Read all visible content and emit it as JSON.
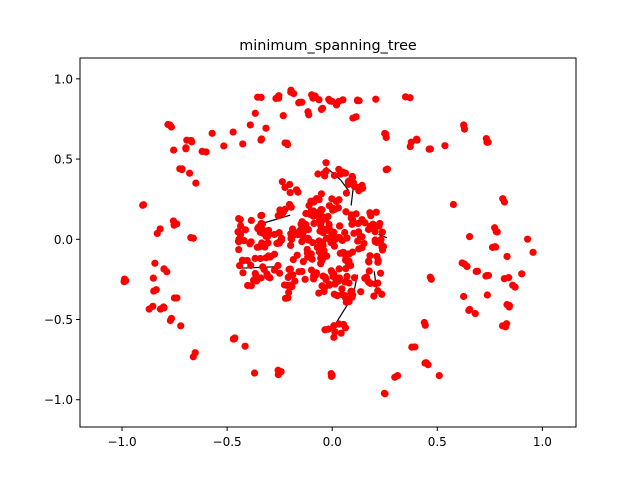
{
  "chart_data": {
    "type": "scatter",
    "title": "minimum_spanning_tree",
    "xlabel": "",
    "ylabel": "",
    "xlim": [
      -1.2,
      1.16
    ],
    "ylim": [
      -1.17,
      1.13
    ],
    "xticks": [
      -1.0,
      -0.5,
      0.0,
      0.5,
      1.0
    ],
    "xtick_labels": [
      "−1.0",
      "−0.5",
      "0.0",
      "0.5",
      "1.0"
    ],
    "yticks": [
      -1.0,
      -0.5,
      0.0,
      0.5,
      1.0
    ],
    "ytick_labels": [
      "−1.0",
      "−0.5",
      "0.0",
      "0.5",
      "1.0"
    ],
    "grid": false,
    "node_color": "#ff0000",
    "edge_color": "#000000",
    "outer_nodes": [
      [
        -0.35,
        0.89
      ],
      [
        -0.26,
        0.89
      ],
      [
        -0.19,
        0.92
      ],
      [
        -0.15,
        0.85
      ],
      [
        -0.09,
        0.89
      ],
      [
        -0.06,
        0.87
      ],
      [
        -0.01,
        0.87
      ],
      [
        0.05,
        0.88
      ],
      [
        0.13,
        0.87
      ],
      [
        0.21,
        0.87
      ],
      [
        0.36,
        0.88
      ],
      [
        -0.37,
        0.77
      ],
      [
        -0.31,
        0.69
      ],
      [
        -0.24,
        0.77
      ],
      [
        -0.12,
        0.78
      ],
      [
        -0.05,
        0.81
      ],
      [
        0.02,
        0.85
      ],
      [
        0.11,
        0.76
      ],
      [
        0.25,
        0.65
      ],
      [
        0.4,
        0.63
      ],
      [
        -0.4,
        0.7
      ],
      [
        -0.57,
        0.67
      ],
      [
        -0.48,
        0.66
      ],
      [
        -0.77,
        0.71
      ],
      [
        -0.68,
        0.61
      ],
      [
        -0.7,
        0.57
      ],
      [
        -0.61,
        0.55
      ],
      [
        -0.52,
        0.58
      ],
      [
        -0.43,
        0.59
      ],
      [
        -0.33,
        0.62
      ],
      [
        -0.22,
        0.6
      ],
      [
        0.38,
        0.59
      ],
      [
        0.47,
        0.55
      ],
      [
        0.53,
        0.59
      ],
      [
        0.63,
        0.7
      ],
      [
        0.74,
        0.62
      ],
      [
        -0.76,
        0.55
      ],
      [
        -0.72,
        0.44
      ],
      [
        -0.67,
        0.42
      ],
      [
        -0.64,
        0.35
      ],
      [
        0.26,
        0.44
      ],
      [
        -0.9,
        0.21
      ],
      [
        -0.75,
        0.1
      ],
      [
        -0.83,
        0.05
      ],
      [
        -0.67,
        0.0
      ],
      [
        -0.45,
        0.0
      ],
      [
        0.57,
        0.22
      ],
      [
        0.81,
        0.24
      ],
      [
        0.65,
        0.01
      ],
      [
        0.78,
        0.06
      ],
      [
        0.92,
        0.01
      ],
      [
        0.96,
        -0.07
      ],
      [
        0.77,
        -0.04
      ],
      [
        0.84,
        -0.12
      ],
      [
        -0.84,
        -0.15
      ],
      [
        -0.79,
        -0.19
      ],
      [
        -0.84,
        -0.25
      ],
      [
        -0.99,
        -0.26
      ],
      [
        -0.84,
        -0.32
      ],
      [
        -0.86,
        -0.42
      ],
      [
        -0.81,
        -0.43
      ],
      [
        -0.75,
        -0.36
      ],
      [
        -0.77,
        -0.5
      ],
      [
        -0.71,
        -0.55
      ],
      [
        0.63,
        -0.16
      ],
      [
        0.68,
        -0.19
      ],
      [
        0.74,
        -0.22
      ],
      [
        0.83,
        -0.24
      ],
      [
        0.91,
        -0.2
      ],
      [
        0.86,
        -0.3
      ],
      [
        0.46,
        -0.24
      ],
      [
        0.62,
        -0.37
      ],
      [
        0.73,
        -0.35
      ],
      [
        0.84,
        -0.42
      ],
      [
        0.66,
        -0.45
      ],
      [
        0.69,
        -0.47
      ],
      [
        0.82,
        -0.54
      ],
      [
        0.45,
        -0.53
      ],
      [
        -0.47,
        -0.63
      ],
      [
        -0.41,
        -0.67
      ],
      [
        -0.65,
        -0.72
      ],
      [
        -0.37,
        -0.82
      ],
      [
        -0.25,
        -0.83
      ],
      [
        0.0,
        -0.85
      ],
      [
        0.39,
        -0.67
      ],
      [
        0.45,
        -0.77
      ],
      [
        0.51,
        -0.84
      ],
      [
        0.3,
        -0.85
      ],
      [
        0.25,
        -0.95
      ]
    ],
    "inner_nodes": [
      [
        -0.42,
        0.08
      ],
      [
        -0.33,
        0.12
      ],
      [
        -0.35,
        0.02
      ],
      [
        -0.41,
        -0.02
      ],
      [
        -0.43,
        -0.18
      ],
      [
        -0.36,
        -0.18
      ],
      [
        -0.37,
        -0.26
      ],
      [
        -0.3,
        -0.08
      ],
      [
        -0.28,
        -0.2
      ],
      [
        -0.33,
        -0.08
      ],
      [
        -0.24,
        0.16
      ],
      [
        -0.22,
        0.2
      ],
      [
        -0.2,
        0.34
      ],
      [
        -0.16,
        0.08
      ],
      [
        -0.12,
        0.2
      ],
      [
        -0.1,
        0.14
      ],
      [
        -0.07,
        0.24
      ],
      [
        -0.04,
        0.17
      ],
      [
        0.0,
        0.22
      ],
      [
        0.03,
        0.21
      ],
      [
        0.08,
        0.13
      ],
      [
        0.13,
        0.14
      ],
      [
        0.18,
        0.12
      ],
      [
        0.2,
        0.06
      ],
      [
        0.24,
        0.02
      ],
      [
        0.23,
        -0.04
      ],
      [
        0.21,
        -0.1
      ],
      [
        0.19,
        -0.18
      ],
      [
        0.2,
        -0.25
      ],
      [
        0.21,
        -0.32
      ],
      [
        0.15,
        -0.22
      ],
      [
        0.11,
        -0.14
      ],
      [
        0.07,
        -0.08
      ],
      [
        0.03,
        -0.04
      ],
      [
        0.0,
        0.0
      ],
      [
        -0.05,
        0.03
      ],
      [
        -0.09,
        -0.04
      ],
      [
        -0.13,
        -0.09
      ],
      [
        -0.17,
        -0.16
      ],
      [
        -0.18,
        -0.27
      ],
      [
        -0.19,
        -0.33
      ],
      [
        -0.11,
        -0.2
      ],
      [
        -0.06,
        -0.14
      ],
      [
        -0.02,
        -0.24
      ],
      [
        0.03,
        -0.17
      ],
      [
        0.07,
        -0.27
      ],
      [
        0.08,
        -0.33
      ],
      [
        0.02,
        -0.31
      ],
      [
        -0.05,
        -0.3
      ],
      [
        0.1,
        0.33
      ],
      [
        0.12,
        0.33
      ],
      [
        -0.03,
        0.45
      ],
      [
        0.0,
        0.43
      ],
      [
        0.07,
        0.38
      ],
      [
        -0.27,
        0.02
      ],
      [
        -0.22,
        -0.02
      ],
      [
        -0.18,
        0.03
      ],
      [
        -0.13,
        0.04
      ],
      [
        -0.05,
        0.1
      ],
      [
        0.04,
        0.05
      ],
      [
        0.09,
        0.02
      ],
      [
        0.14,
        -0.02
      ],
      [
        0.17,
        0.02
      ],
      [
        -0.01,
        -0.08
      ],
      [
        -0.08,
        -0.1
      ],
      [
        0.0,
        -0.56
      ],
      [
        0.04,
        -0.57
      ],
      [
        0.1,
        -0.35
      ]
    ],
    "edges": [
      [
        [
          -0.44,
          -0.18
        ],
        [
          -0.25,
          -0.17
        ]
      ],
      [
        [
          -0.35,
          0.03
        ],
        [
          -0.33,
          0.1
        ]
      ],
      [
        [
          -0.33,
          0.1
        ],
        [
          -0.2,
          0.15
        ]
      ],
      [
        [
          0.09,
          0.21
        ],
        [
          0.1,
          0.32
        ]
      ],
      [
        [
          0.1,
          0.32
        ],
        [
          0.12,
          0.34
        ]
      ],
      [
        [
          -0.03,
          0.45
        ],
        [
          0.04,
          0.37
        ]
      ],
      [
        [
          0.04,
          0.37
        ],
        [
          0.08,
          0.3
        ]
      ],
      [
        [
          0.0,
          -0.56
        ],
        [
          0.1,
          -0.35
        ]
      ],
      [
        [
          0.1,
          -0.35
        ],
        [
          0.12,
          -0.22
        ]
      ],
      [
        [
          0.22,
          0.03
        ],
        [
          0.26,
          0.01
        ]
      ],
      [
        [
          0.21,
          -0.3
        ],
        [
          0.2,
          -0.2
        ]
      ]
    ]
  }
}
